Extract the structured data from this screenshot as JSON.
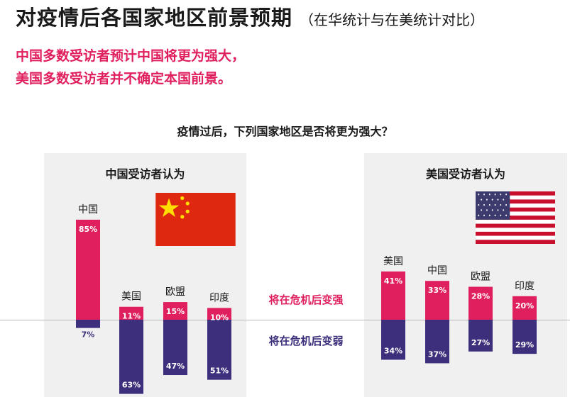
{
  "title": "对疫情后各国家地区前景预期",
  "subtitle": "（在华统计与在美统计对比）",
  "headline_1": "中国多数受访者预计中国将更为强大，",
  "headline_2": "美国多数受访者并不确定本国前景。",
  "question": "疫情过后，下列国家地区是否将更为强大？",
  "legend": {
    "stronger": "将在危机后变强",
    "weaker": "将在危机后变弱"
  },
  "colors": {
    "stronger": "#e0205e",
    "weaker": "#3d2f7c",
    "panel": "#f0f0f0"
  },
  "panels": {
    "china": {
      "title": "中国受访者认为",
      "flag_icon": "china-flag-icon"
    },
    "usa": {
      "title": "美国受访者认为",
      "flag_icon": "usa-flag-icon"
    }
  },
  "chart_data": [
    {
      "type": "bar",
      "title": "中国受访者认为",
      "categories": [
        "中国",
        "美国",
        "欧盟",
        "印度"
      ],
      "series": [
        {
          "name": "将在危机后变强",
          "values": [
            85,
            11,
            15,
            10
          ]
        },
        {
          "name": "将在危机后变弱",
          "values": [
            7,
            63,
            47,
            51
          ]
        }
      ],
      "value_format": "percent"
    },
    {
      "type": "bar",
      "title": "美国受访者认为",
      "categories": [
        "美国",
        "中国",
        "欧盟",
        "印度"
      ],
      "series": [
        {
          "name": "将在危机后变强",
          "values": [
            41,
            33,
            28,
            20
          ]
        },
        {
          "name": "将在危机后变弱",
          "values": [
            34,
            37,
            27,
            29
          ]
        }
      ],
      "value_format": "percent"
    }
  ]
}
